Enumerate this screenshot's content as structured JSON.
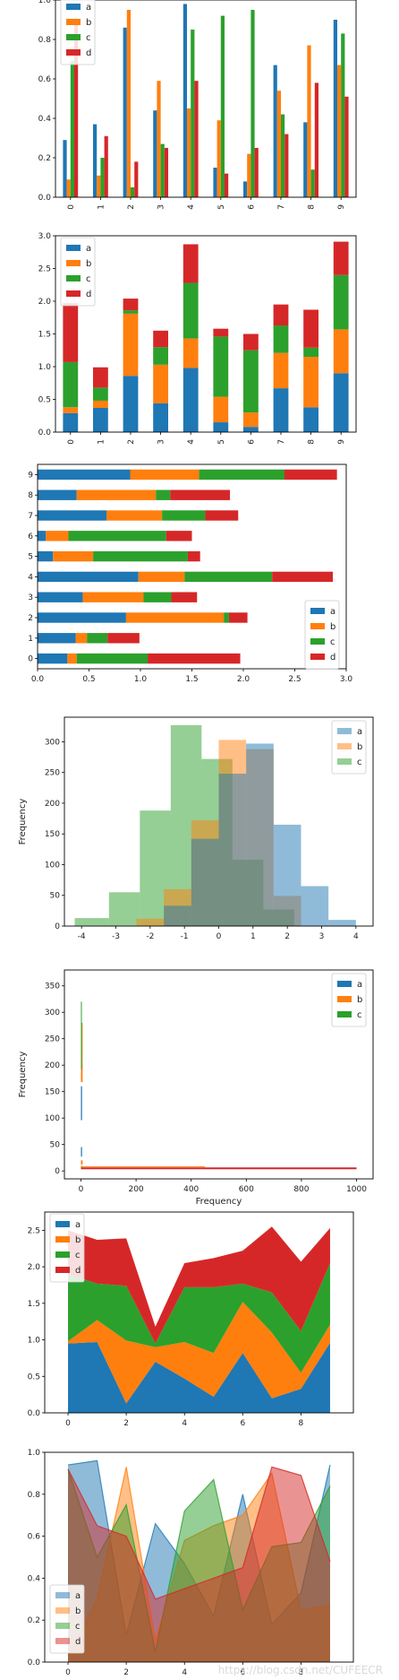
{
  "colors": {
    "a": "#1f77b4",
    "b": "#ff7f0e",
    "c": "#2ca02c",
    "d": "#d62728"
  },
  "watermark": "https://blog.csdn.net/CUFEECR",
  "chart_data": [
    {
      "type": "bar",
      "variant": "grouped",
      "categories": [
        "0",
        "1",
        "2",
        "3",
        "4",
        "5",
        "6",
        "7",
        "8",
        "9"
      ],
      "series": [
        {
          "name": "a",
          "values": [
            0.29,
            0.37,
            0.86,
            0.44,
            0.98,
            0.15,
            0.08,
            0.67,
            0.38,
            0.9
          ]
        },
        {
          "name": "b",
          "values": [
            0.09,
            0.11,
            0.95,
            0.59,
            0.45,
            0.39,
            0.22,
            0.54,
            0.77,
            0.67
          ]
        },
        {
          "name": "c",
          "values": [
            0.69,
            0.2,
            0.05,
            0.27,
            0.85,
            0.92,
            0.95,
            0.42,
            0.14,
            0.83
          ]
        },
        {
          "name": "d",
          "values": [
            0.9,
            0.31,
            0.18,
            0.25,
            0.59,
            0.12,
            0.25,
            0.32,
            0.58,
            0.51
          ]
        }
      ],
      "ylim": [
        0,
        1.0
      ],
      "yticks": [
        "0.0",
        "0.2",
        "0.4",
        "0.6",
        "0.8",
        "1.0"
      ],
      "legend": "top-left"
    },
    {
      "type": "bar",
      "variant": "stacked",
      "categories": [
        "0",
        "1",
        "2",
        "3",
        "4",
        "5",
        "6",
        "7",
        "8",
        "9"
      ],
      "series": [
        {
          "name": "a",
          "values": [
            0.29,
            0.37,
            0.86,
            0.44,
            0.98,
            0.15,
            0.08,
            0.67,
            0.38,
            0.9
          ]
        },
        {
          "name": "b",
          "values": [
            0.09,
            0.11,
            0.95,
            0.59,
            0.45,
            0.39,
            0.22,
            0.54,
            0.77,
            0.67
          ]
        },
        {
          "name": "c",
          "values": [
            0.69,
            0.2,
            0.05,
            0.27,
            0.85,
            0.92,
            0.95,
            0.42,
            0.14,
            0.83
          ]
        },
        {
          "name": "d",
          "values": [
            0.9,
            0.31,
            0.18,
            0.25,
            0.59,
            0.12,
            0.25,
            0.32,
            0.58,
            0.51
          ]
        }
      ],
      "ylim": [
        0,
        3.0
      ],
      "yticks": [
        "0.0",
        "0.5",
        "1.0",
        "1.5",
        "2.0",
        "2.5",
        "3.0"
      ],
      "legend": "top-left"
    },
    {
      "type": "bar",
      "variant": "stacked-horizontal",
      "categories": [
        "0",
        "1",
        "2",
        "3",
        "4",
        "5",
        "6",
        "7",
        "8",
        "9"
      ],
      "series": [
        {
          "name": "a",
          "values": [
            0.29,
            0.37,
            0.86,
            0.44,
            0.98,
            0.15,
            0.08,
            0.67,
            0.38,
            0.9
          ]
        },
        {
          "name": "b",
          "values": [
            0.09,
            0.11,
            0.95,
            0.59,
            0.45,
            0.39,
            0.22,
            0.54,
            0.77,
            0.67
          ]
        },
        {
          "name": "c",
          "values": [
            0.69,
            0.2,
            0.05,
            0.27,
            0.85,
            0.92,
            0.95,
            0.42,
            0.14,
            0.83
          ]
        },
        {
          "name": "d",
          "values": [
            0.9,
            0.31,
            0.18,
            0.25,
            0.59,
            0.12,
            0.25,
            0.32,
            0.58,
            0.51
          ]
        }
      ],
      "xlim": [
        0,
        3.0
      ],
      "xticks": [
        "0.0",
        "0.5",
        "1.0",
        "1.5",
        "2.0",
        "2.5",
        "3.0"
      ],
      "legend": "bottom-right"
    },
    {
      "type": "histogram",
      "bin_edges": [
        -4.2,
        -3.2,
        -2.3,
        -1.4,
        -0.5,
        0.4,
        1.3,
        2.2
      ],
      "series": [
        {
          "name": "c",
          "alpha": 0.5,
          "bin_edges": [
            -4.2,
            -3.2,
            -2.3,
            -1.4,
            -0.5,
            0.4,
            1.3,
            2.2
          ],
          "counts": [
            13,
            55,
            188,
            327,
            272,
            108,
            27
          ]
        },
        {
          "name": "b",
          "alpha": 0.5,
          "bin_edges": [
            -2.4,
            -1.6,
            -0.8,
            0.0,
            0.8,
            1.6,
            2.4
          ],
          "counts": [
            12,
            60,
            172,
            303,
            288,
            49
          ]
        },
        {
          "name": "a",
          "alpha": 0.5,
          "bin_edges": [
            -1.6,
            -0.8,
            0.0,
            0.8,
            1.6,
            2.4,
            3.2,
            4.0
          ],
          "counts": [
            33,
            142,
            248,
            297,
            165,
            65,
            10
          ]
        }
      ],
      "xlim": [
        -4.5,
        4.5
      ],
      "ylim": [
        0,
        340
      ],
      "xticks": [
        "-4",
        "-3",
        "-2",
        "-1",
        "0",
        "1",
        "2",
        "3",
        "4"
      ],
      "yticks": [
        "0",
        "50",
        "100",
        "150",
        "200",
        "250",
        "300"
      ],
      "ylabel": "Frequency",
      "legend": "top-right"
    },
    {
      "type": "histogram",
      "variant": "horizontal",
      "series": [
        {
          "name": "a",
          "counts": [
            45,
            160
          ],
          "max_x": 4
        },
        {
          "name": "b",
          "counts": [
            20,
            280
          ],
          "max_x": 6
        },
        {
          "name": "c",
          "counts": [
            10,
            320
          ],
          "max_x": 3
        }
      ],
      "lines": [
        {
          "name": "d",
          "x_end": 1000,
          "y": 5
        }
      ],
      "xlim": [
        -60,
        1060
      ],
      "ylim": [
        -15,
        380
      ],
      "xticks": [
        "0",
        "200",
        "400",
        "600",
        "800",
        "1000"
      ],
      "yticks": [
        "0",
        "50",
        "100",
        "150",
        "200",
        "250",
        "300",
        "350"
      ],
      "xlabel": "Frequency",
      "ylabel": "Frequency",
      "legend": "top-right"
    },
    {
      "type": "area",
      "variant": "stacked",
      "x": [
        0,
        1,
        2,
        3,
        4,
        5,
        6,
        7,
        8,
        9
      ],
      "series": [
        {
          "name": "a",
          "values": [
            0.95,
            0.97,
            0.13,
            0.7,
            0.47,
            0.22,
            0.82,
            0.2,
            0.33,
            0.96
          ]
        },
        {
          "name": "b",
          "values": [
            0.03,
            0.3,
            0.86,
            0.2,
            0.5,
            0.6,
            0.7,
            0.9,
            0.22,
            0.25
          ]
        },
        {
          "name": "c",
          "values": [
            0.92,
            0.5,
            0.75,
            0.05,
            0.75,
            0.9,
            0.25,
            0.55,
            0.57,
            0.84
          ]
        },
        {
          "name": "d",
          "values": [
            0.6,
            0.6,
            0.65,
            0.23,
            0.33,
            0.4,
            0.45,
            0.9,
            0.95,
            0.48
          ]
        }
      ],
      "ylim": [
        0,
        2.75
      ],
      "yticks": [
        "0.0",
        "0.5",
        "1.0",
        "1.5",
        "2.0",
        "2.5"
      ],
      "xticks": [
        "0",
        "2",
        "4",
        "6",
        "8"
      ],
      "legend": "top-left"
    },
    {
      "type": "area",
      "variant": "overlapping",
      "x": [
        0,
        1,
        2,
        3,
        4,
        5,
        6,
        7,
        8,
        9
      ],
      "series": [
        {
          "name": "a",
          "alpha": 0.5,
          "values": [
            0.94,
            0.96,
            0.13,
            0.66,
            0.47,
            0.22,
            0.8,
            0.18,
            0.33,
            0.94
          ]
        },
        {
          "name": "b",
          "alpha": 0.5,
          "values": [
            0.03,
            0.3,
            0.93,
            0.1,
            0.58,
            0.65,
            0.7,
            0.9,
            0.25,
            0.27
          ]
        },
        {
          "name": "c",
          "alpha": 0.5,
          "values": [
            0.92,
            0.5,
            0.75,
            0.05,
            0.72,
            0.87,
            0.25,
            0.55,
            0.57,
            0.84
          ]
        },
        {
          "name": "d",
          "alpha": 0.5,
          "values": [
            0.92,
            0.65,
            0.6,
            0.3,
            0.35,
            0.4,
            0.45,
            0.93,
            0.89,
            0.48
          ]
        }
      ],
      "ylim": [
        0,
        1.0
      ],
      "yticks": [
        "0.0",
        "0.2",
        "0.4",
        "0.6",
        "0.8",
        "1.0"
      ],
      "xticks": [
        "0",
        "2",
        "4",
        "6",
        "8"
      ],
      "legend": "bottom-left"
    }
  ]
}
